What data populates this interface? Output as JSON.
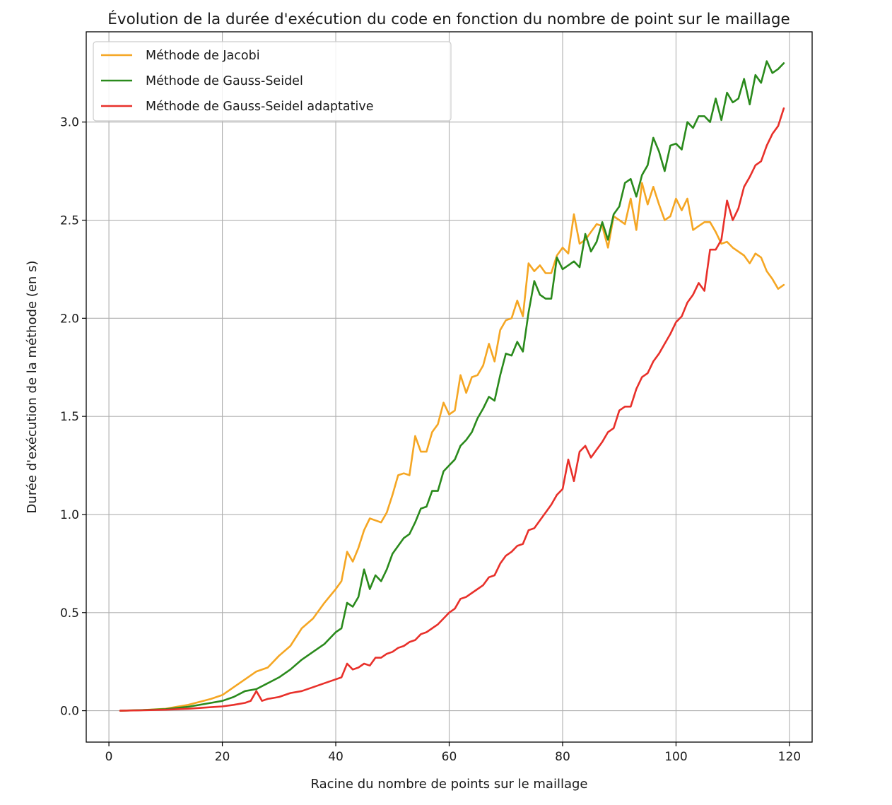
{
  "colors": {
    "jacobi": "#f5a623",
    "gauss_seidel": "#2a8a1c",
    "gauss_seidel_adaptive": "#e8302a",
    "grid": "#b0b0b0",
    "axes": "#000000"
  },
  "chart_data": {
    "type": "line",
    "title": "Évolution de la durée d'exécution du code en fonction du nombre de point sur le maillage",
    "xlabel": "Racine du nombre de points sur le maillage",
    "ylabel": "Durée d'exécution de la méthode (en s)",
    "xlim": [
      -4,
      124
    ],
    "ylim": [
      -0.16,
      3.46
    ],
    "xticks": [
      0,
      20,
      40,
      60,
      80,
      100,
      120
    ],
    "xtick_labels": [
      "0",
      "20",
      "40",
      "60",
      "80",
      "100",
      "120"
    ],
    "yticks": [
      0.0,
      0.5,
      1.0,
      1.5,
      2.0,
      2.5,
      3.0
    ],
    "ytick_labels": [
      "0.0",
      "0.5",
      "1.0",
      "1.5",
      "2.0",
      "2.5",
      "3.0"
    ],
    "grid": true,
    "legend_position": "top-left",
    "series": [
      {
        "name": "Méthode de Jacobi",
        "color_key": "jacobi",
        "x": [
          2,
          6,
          10,
          14,
          18,
          20,
          22,
          24,
          26,
          28,
          30,
          32,
          34,
          36,
          38,
          40,
          41,
          42,
          43,
          44,
          45,
          46,
          47,
          48,
          49,
          50,
          51,
          52,
          53,
          54,
          55,
          56,
          57,
          58,
          59,
          60,
          61,
          62,
          63,
          64,
          65,
          66,
          67,
          68,
          69,
          70,
          71,
          72,
          73,
          74,
          75,
          76,
          77,
          78,
          79,
          80,
          81,
          82,
          83,
          84,
          85,
          86,
          87,
          88,
          89,
          90,
          91,
          92,
          93,
          94,
          95,
          96,
          97,
          98,
          99,
          100,
          101,
          102,
          103,
          104,
          105,
          106,
          107,
          108,
          109,
          110,
          111,
          112,
          113,
          114,
          115,
          116,
          117,
          118,
          119
        ],
        "y": [
          0.0,
          0.003,
          0.01,
          0.03,
          0.06,
          0.08,
          0.12,
          0.16,
          0.2,
          0.22,
          0.28,
          0.33,
          0.42,
          0.47,
          0.55,
          0.62,
          0.66,
          0.81,
          0.76,
          0.83,
          0.92,
          0.98,
          0.97,
          0.96,
          1.01,
          1.1,
          1.2,
          1.21,
          1.2,
          1.4,
          1.32,
          1.32,
          1.42,
          1.46,
          1.57,
          1.51,
          1.53,
          1.71,
          1.62,
          1.7,
          1.71,
          1.76,
          1.87,
          1.78,
          1.94,
          1.99,
          2.0,
          2.09,
          2.01,
          2.28,
          2.24,
          2.27,
          2.23,
          2.23,
          2.32,
          2.36,
          2.33,
          2.53,
          2.38,
          2.4,
          2.44,
          2.48,
          2.47,
          2.36,
          2.52,
          2.5,
          2.48,
          2.61,
          2.45,
          2.69,
          2.58,
          2.67,
          2.58,
          2.5,
          2.52,
          2.61,
          2.55,
          2.61,
          2.45,
          2.47,
          2.49,
          2.49,
          2.44,
          2.38,
          2.39,
          2.36,
          2.34,
          2.32,
          2.28,
          2.33,
          2.31,
          2.24,
          2.2,
          2.15,
          2.17
        ]
      },
      {
        "name": "Méthode de Gauss-Seidel",
        "color_key": "gauss_seidel",
        "x": [
          2,
          6,
          10,
          14,
          18,
          20,
          22,
          24,
          26,
          28,
          30,
          32,
          34,
          36,
          38,
          40,
          41,
          42,
          43,
          44,
          45,
          46,
          47,
          48,
          49,
          50,
          51,
          52,
          53,
          54,
          55,
          56,
          57,
          58,
          59,
          60,
          61,
          62,
          63,
          64,
          65,
          66,
          67,
          68,
          69,
          70,
          71,
          72,
          73,
          74,
          75,
          76,
          77,
          78,
          79,
          80,
          81,
          82,
          83,
          84,
          85,
          86,
          87,
          88,
          89,
          90,
          91,
          92,
          93,
          94,
          95,
          96,
          97,
          98,
          99,
          100,
          101,
          102,
          103,
          104,
          105,
          106,
          107,
          108,
          109,
          110,
          111,
          112,
          113,
          114,
          115,
          116,
          117,
          118,
          119
        ],
        "y": [
          0.0,
          0.003,
          0.008,
          0.02,
          0.04,
          0.05,
          0.07,
          0.1,
          0.11,
          0.14,
          0.17,
          0.21,
          0.26,
          0.3,
          0.34,
          0.4,
          0.42,
          0.55,
          0.53,
          0.58,
          0.72,
          0.62,
          0.69,
          0.66,
          0.72,
          0.8,
          0.84,
          0.88,
          0.9,
          0.96,
          1.03,
          1.04,
          1.12,
          1.12,
          1.22,
          1.25,
          1.28,
          1.35,
          1.38,
          1.42,
          1.49,
          1.54,
          1.6,
          1.58,
          1.71,
          1.82,
          1.81,
          1.88,
          1.83,
          2.03,
          2.19,
          2.12,
          2.1,
          2.1,
          2.31,
          2.25,
          2.27,
          2.29,
          2.26,
          2.43,
          2.34,
          2.39,
          2.49,
          2.4,
          2.53,
          2.57,
          2.69,
          2.71,
          2.62,
          2.73,
          2.78,
          2.92,
          2.85,
          2.75,
          2.88,
          2.89,
          2.86,
          3.0,
          2.97,
          3.03,
          3.03,
          3.0,
          3.12,
          3.01,
          3.15,
          3.1,
          3.12,
          3.22,
          3.09,
          3.24,
          3.2,
          3.31,
          3.25,
          3.27,
          3.3
        ]
      },
      {
        "name": "Méthode de Gauss-Seidel adaptative",
        "color_key": "gauss_seidel_adaptive",
        "x": [
          2,
          6,
          10,
          14,
          18,
          20,
          22,
          24,
          25,
          26,
          27,
          28,
          30,
          32,
          34,
          36,
          38,
          40,
          41,
          42,
          43,
          44,
          45,
          46,
          47,
          48,
          49,
          50,
          51,
          52,
          53,
          54,
          55,
          56,
          57,
          58,
          59,
          60,
          61,
          62,
          63,
          64,
          65,
          66,
          67,
          68,
          69,
          70,
          71,
          72,
          73,
          74,
          75,
          76,
          77,
          78,
          79,
          80,
          81,
          82,
          83,
          84,
          85,
          86,
          87,
          88,
          89,
          90,
          91,
          92,
          93,
          94,
          95,
          96,
          97,
          98,
          99,
          100,
          101,
          102,
          103,
          104,
          105,
          106,
          107,
          108,
          109,
          110,
          111,
          112,
          113,
          114,
          115,
          116,
          117,
          118,
          119
        ],
        "y": [
          0.0,
          0.002,
          0.005,
          0.01,
          0.018,
          0.022,
          0.03,
          0.04,
          0.05,
          0.1,
          0.05,
          0.06,
          0.07,
          0.09,
          0.1,
          0.12,
          0.14,
          0.16,
          0.17,
          0.24,
          0.21,
          0.22,
          0.24,
          0.23,
          0.27,
          0.27,
          0.29,
          0.3,
          0.32,
          0.33,
          0.35,
          0.36,
          0.39,
          0.4,
          0.42,
          0.44,
          0.47,
          0.5,
          0.52,
          0.57,
          0.58,
          0.6,
          0.62,
          0.64,
          0.68,
          0.69,
          0.75,
          0.79,
          0.81,
          0.84,
          0.85,
          0.92,
          0.93,
          0.97,
          1.01,
          1.05,
          1.1,
          1.13,
          1.28,
          1.17,
          1.32,
          1.35,
          1.29,
          1.33,
          1.37,
          1.42,
          1.44,
          1.53,
          1.55,
          1.55,
          1.64,
          1.7,
          1.72,
          1.78,
          1.82,
          1.87,
          1.92,
          1.98,
          2.01,
          2.08,
          2.12,
          2.18,
          2.14,
          2.35,
          2.35,
          2.4,
          2.6,
          2.5,
          2.56,
          2.67,
          2.72,
          2.78,
          2.8,
          2.88,
          2.94,
          2.98,
          3.07
        ]
      }
    ]
  }
}
